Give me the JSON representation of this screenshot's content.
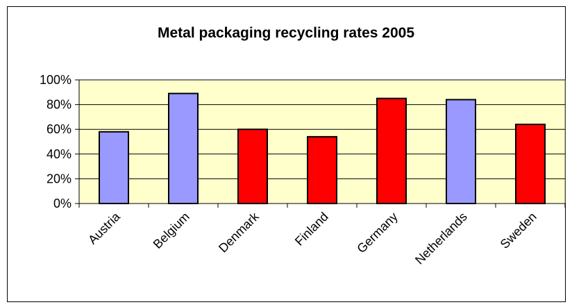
{
  "chart_data": {
    "type": "bar",
    "title": "Metal packaging recycling rates 2005",
    "xlabel": "",
    "ylabel": "",
    "categories": [
      "Austria",
      "Belgium",
      "Denmark",
      "Finland",
      "Germany",
      "Netherlands",
      "Sweden"
    ],
    "values": [
      58,
      89,
      60,
      54,
      85,
      84,
      64
    ],
    "bar_colors": [
      "#9999ff",
      "#9999ff",
      "#ff0000",
      "#ff0000",
      "#ff0000",
      "#9999ff",
      "#ff0000"
    ],
    "ylim": [
      0,
      100
    ],
    "yticks": [
      0,
      20,
      40,
      60,
      80,
      100
    ],
    "ytick_labels": [
      "0%",
      "20%",
      "40%",
      "60%",
      "80%",
      "100%"
    ],
    "grid": true,
    "legend": "none",
    "plot_background": "#ffffcc"
  }
}
